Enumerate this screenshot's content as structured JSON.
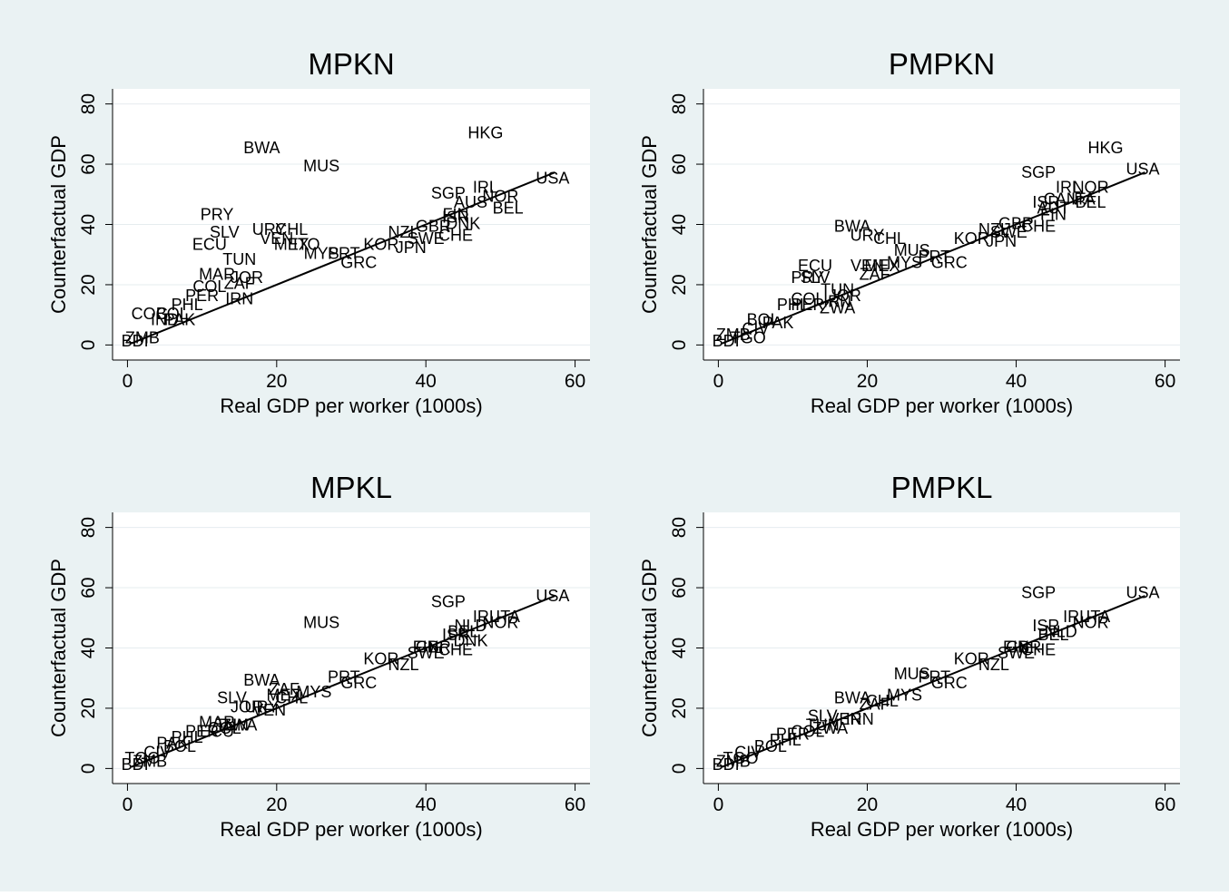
{
  "figure": {
    "background": "#eaf2f3",
    "plot_background": "#ffffff",
    "ink": "#000000"
  },
  "chart_data": [
    {
      "type": "scatter",
      "title": "MPKN",
      "xlabel": "Real GDP per worker (1000s)",
      "ylabel": "Counterfactual GDP",
      "xlim": [
        -2,
        62
      ],
      "ylim": [
        -5,
        85
      ],
      "xticks": [
        0,
        20,
        40,
        60
      ],
      "yticks": [
        0,
        20,
        40,
        60,
        80
      ],
      "grid": true,
      "fit_line": {
        "x": [
          0.5,
          57.3
        ],
        "y": [
          0.5,
          57.3
        ]
      },
      "points": [
        {
          "label": "HKG",
          "x": 48,
          "y": 70
        },
        {
          "label": "USA",
          "x": 57,
          "y": 55
        },
        {
          "label": "BWA",
          "x": 18,
          "y": 65
        },
        {
          "label": "MUS",
          "x": 26,
          "y": 59
        },
        {
          "label": "PRY",
          "x": 12,
          "y": 43
        },
        {
          "label": "SLV",
          "x": 13,
          "y": 37
        },
        {
          "label": "ECU",
          "x": 11,
          "y": 33
        },
        {
          "label": "URY",
          "x": 19,
          "y": 38
        },
        {
          "label": "CHL",
          "x": 22,
          "y": 38
        },
        {
          "label": "VEN",
          "x": 20,
          "y": 35
        },
        {
          "label": "MEX",
          "x": 22,
          "y": 33
        },
        {
          "label": "ITO",
          "x": 24,
          "y": 33
        },
        {
          "label": "MYS",
          "x": 26,
          "y": 30
        },
        {
          "label": "PRT",
          "x": 29,
          "y": 30
        },
        {
          "label": "GRC",
          "x": 31,
          "y": 27
        },
        {
          "label": "TUN",
          "x": 15,
          "y": 28
        },
        {
          "label": "MAR",
          "x": 12,
          "y": 23
        },
        {
          "label": "JOR",
          "x": 16,
          "y": 22
        },
        {
          "label": "COL",
          "x": 11,
          "y": 19
        },
        {
          "label": "ZAF",
          "x": 15,
          "y": 20
        },
        {
          "label": "PER",
          "x": 10,
          "y": 16
        },
        {
          "label": "IRN",
          "x": 15,
          "y": 15
        },
        {
          "label": "PHL",
          "x": 8,
          "y": 13
        },
        {
          "label": "COG",
          "x": 3,
          "y": 10
        },
        {
          "label": "BOL",
          "x": 6,
          "y": 10
        },
        {
          "label": "IND",
          "x": 5,
          "y": 8
        },
        {
          "label": "PAK",
          "x": 7,
          "y": 8
        },
        {
          "label": "ZMB",
          "x": 2,
          "y": 2
        },
        {
          "label": "BDI",
          "x": 1,
          "y": 1
        },
        {
          "label": "SGP",
          "x": 43,
          "y": 50
        },
        {
          "label": "IRL",
          "x": 48,
          "y": 52
        },
        {
          "label": "NOR",
          "x": 50,
          "y": 49
        },
        {
          "label": "BEL",
          "x": 51,
          "y": 45
        },
        {
          "label": "AUS",
          "x": 46,
          "y": 47
        },
        {
          "label": "ISR",
          "x": 44,
          "y": 42
        },
        {
          "label": "DNK",
          "x": 45,
          "y": 40
        },
        {
          "label": "FIN",
          "x": 44,
          "y": 43
        },
        {
          "label": "GBR",
          "x": 41,
          "y": 39
        },
        {
          "label": "NZL",
          "x": 37,
          "y": 37
        },
        {
          "label": "SWE",
          "x": 40,
          "y": 35
        },
        {
          "label": "CHE",
          "x": 44,
          "y": 36
        },
        {
          "label": "KOR",
          "x": 34,
          "y": 33
        },
        {
          "label": "JPN",
          "x": 38,
          "y": 32
        }
      ]
    },
    {
      "type": "scatter",
      "title": "PMPKN",
      "xlabel": "Real GDP per worker (1000s)",
      "ylabel": "Counterfactual GDP",
      "xlim": [
        -2,
        62
      ],
      "ylim": [
        -5,
        85
      ],
      "xticks": [
        0,
        20,
        40,
        60
      ],
      "yticks": [
        0,
        20,
        40,
        60,
        80
      ],
      "grid": true,
      "fit_line": {
        "x": [
          0.5,
          57.3
        ],
        "y": [
          0.5,
          57.3
        ]
      },
      "points": [
        {
          "label": "HKG",
          "x": 52,
          "y": 65
        },
        {
          "label": "USA",
          "x": 57,
          "y": 58
        },
        {
          "label": "SGP",
          "x": 43,
          "y": 57
        },
        {
          "label": "IRL",
          "x": 47,
          "y": 52
        },
        {
          "label": "NOR",
          "x": 50,
          "y": 52
        },
        {
          "label": "CAN",
          "x": 46,
          "y": 48
        },
        {
          "label": "ITA",
          "x": 49,
          "y": 48
        },
        {
          "label": "ISR",
          "x": 44,
          "y": 47
        },
        {
          "label": "BEL",
          "x": 50,
          "y": 47
        },
        {
          "label": "AUT",
          "x": 45,
          "y": 45
        },
        {
          "label": "FIN",
          "x": 45,
          "y": 43
        },
        {
          "label": "GBR",
          "x": 40,
          "y": 40
        },
        {
          "label": "NZL",
          "x": 37,
          "y": 38
        },
        {
          "label": "SWE",
          "x": 39,
          "y": 37
        },
        {
          "label": "CHE",
          "x": 43,
          "y": 39
        },
        {
          "label": "KOR",
          "x": 34,
          "y": 35
        },
        {
          "label": "JPN",
          "x": 38,
          "y": 34
        },
        {
          "label": "BWA",
          "x": 18,
          "y": 39
        },
        {
          "label": "URY",
          "x": 20,
          "y": 36
        },
        {
          "label": "CHL",
          "x": 23,
          "y": 35
        },
        {
          "label": "MUS",
          "x": 26,
          "y": 31
        },
        {
          "label": "PRT",
          "x": 29,
          "y": 29
        },
        {
          "label": "GRC",
          "x": 31,
          "y": 27
        },
        {
          "label": "ECU",
          "x": 13,
          "y": 26
        },
        {
          "label": "VEN",
          "x": 20,
          "y": 26
        },
        {
          "label": "MEX",
          "x": 22,
          "y": 26
        },
        {
          "label": "MYS",
          "x": 25,
          "y": 27
        },
        {
          "label": "PRY",
          "x": 12,
          "y": 22
        },
        {
          "label": "SLV",
          "x": 13,
          "y": 22
        },
        {
          "label": "ZAF",
          "x": 21,
          "y": 23
        },
        {
          "label": "TUN",
          "x": 16,
          "y": 18
        },
        {
          "label": "JOR",
          "x": 17,
          "y": 16
        },
        {
          "label": "COL",
          "x": 12,
          "y": 15
        },
        {
          "label": "IRN",
          "x": 16,
          "y": 14
        },
        {
          "label": "PHL",
          "x": 10,
          "y": 13
        },
        {
          "label": "PER",
          "x": 12,
          "y": 13
        },
        {
          "label": "ZWA",
          "x": 16,
          "y": 12
        },
        {
          "label": "BOL",
          "x": 6,
          "y": 8
        },
        {
          "label": "PAK",
          "x": 8,
          "y": 7
        },
        {
          "label": "CIV",
          "x": 5,
          "y": 5
        },
        {
          "label": "ZMB",
          "x": 2,
          "y": 3
        },
        {
          "label": "BDI",
          "x": 1,
          "y": 1
        },
        {
          "label": "TGO",
          "x": 4,
          "y": 2
        }
      ]
    },
    {
      "type": "scatter",
      "title": "MPKL",
      "xlabel": "Real GDP per worker (1000s)",
      "ylabel": "Counterfactual GDP",
      "xlim": [
        -2,
        62
      ],
      "ylim": [
        -5,
        85
      ],
      "xticks": [
        0,
        20,
        40,
        60
      ],
      "yticks": [
        0,
        20,
        40,
        60,
        80
      ],
      "grid": true,
      "fit_line": {
        "x": [
          0.5,
          57.3
        ],
        "y": [
          0.5,
          57.3
        ]
      },
      "points": [
        {
          "label": "USA",
          "x": 57,
          "y": 57
        },
        {
          "label": "SGP",
          "x": 43,
          "y": 55
        },
        {
          "label": "MUS",
          "x": 26,
          "y": 48
        },
        {
          "label": "IRL",
          "x": 48,
          "y": 50
        },
        {
          "label": "ITA",
          "x": 51,
          "y": 50
        },
        {
          "label": "NOR",
          "x": 50,
          "y": 48
        },
        {
          "label": "NLD",
          "x": 46,
          "y": 47
        },
        {
          "label": "BEL",
          "x": 45,
          "y": 45
        },
        {
          "label": "ISR",
          "x": 44,
          "y": 44
        },
        {
          "label": "DNK",
          "x": 46,
          "y": 42
        },
        {
          "label": "FIN",
          "x": 40,
          "y": 40
        },
        {
          "label": "GBR",
          "x": 41,
          "y": 40
        },
        {
          "label": "SWE",
          "x": 40,
          "y": 38
        },
        {
          "label": "CHE",
          "x": 44,
          "y": 39
        },
        {
          "label": "KOR",
          "x": 34,
          "y": 36
        },
        {
          "label": "NZL",
          "x": 37,
          "y": 34
        },
        {
          "label": "PRT",
          "x": 29,
          "y": 30
        },
        {
          "label": "GRC",
          "x": 31,
          "y": 28
        },
        {
          "label": "BWA",
          "x": 18,
          "y": 29
        },
        {
          "label": "ZAF",
          "x": 21,
          "y": 26
        },
        {
          "label": "MYS",
          "x": 25,
          "y": 25
        },
        {
          "label": "MEX",
          "x": 21,
          "y": 24
        },
        {
          "label": "CHL",
          "x": 22,
          "y": 23
        },
        {
          "label": "SLV",
          "x": 14,
          "y": 23
        },
        {
          "label": "JOR",
          "x": 16,
          "y": 20
        },
        {
          "label": "URY",
          "x": 18,
          "y": 20
        },
        {
          "label": "VEN",
          "x": 19,
          "y": 19
        },
        {
          "label": "MAR",
          "x": 12,
          "y": 15
        },
        {
          "label": "TUN",
          "x": 14,
          "y": 14
        },
        {
          "label": "ZWA",
          "x": 15,
          "y": 14
        },
        {
          "label": "PER",
          "x": 10,
          "y": 12
        },
        {
          "label": "ECU",
          "x": 12,
          "y": 12
        },
        {
          "label": "COL",
          "x": 13,
          "y": 13
        },
        {
          "label": "PHL",
          "x": 8,
          "y": 10
        },
        {
          "label": "BOL",
          "x": 7,
          "y": 7
        },
        {
          "label": "PAK",
          "x": 6,
          "y": 8
        },
        {
          "label": "CIV",
          "x": 4,
          "y": 5
        },
        {
          "label": "TGO",
          "x": 2,
          "y": 3
        },
        {
          "label": "ZMB",
          "x": 3,
          "y": 2
        },
        {
          "label": "BDI",
          "x": 1,
          "y": 1
        }
      ]
    },
    {
      "type": "scatter",
      "title": "PMPKL",
      "xlabel": "Real GDP per worker (1000s)",
      "ylabel": "Counterfactual GDP",
      "xlim": [
        -2,
        62
      ],
      "ylim": [
        -5,
        85
      ],
      "xticks": [
        0,
        20,
        40,
        60
      ],
      "yticks": [
        0,
        20,
        40,
        60,
        80
      ],
      "grid": true,
      "fit_line": {
        "x": [
          0.5,
          57.3
        ],
        "y": [
          0.5,
          57.3
        ]
      },
      "points": [
        {
          "label": "SGP",
          "x": 43,
          "y": 58
        },
        {
          "label": "USA",
          "x": 57,
          "y": 58
        },
        {
          "label": "IRL",
          "x": 48,
          "y": 50
        },
        {
          "label": "ITA",
          "x": 51,
          "y": 50
        },
        {
          "label": "NOR",
          "x": 50,
          "y": 48
        },
        {
          "label": "ISR",
          "x": 44,
          "y": 47
        },
        {
          "label": "NLD",
          "x": 46,
          "y": 45
        },
        {
          "label": "BEL",
          "x": 45,
          "y": 44
        },
        {
          "label": "FIN",
          "x": 40,
          "y": 40
        },
        {
          "label": "GBR",
          "x": 41,
          "y": 40
        },
        {
          "label": "SWE",
          "x": 40,
          "y": 38
        },
        {
          "label": "CHE",
          "x": 43,
          "y": 39
        },
        {
          "label": "KOR",
          "x": 34,
          "y": 36
        },
        {
          "label": "NZL",
          "x": 37,
          "y": 34
        },
        {
          "label": "MUS",
          "x": 26,
          "y": 31
        },
        {
          "label": "PRT",
          "x": 29,
          "y": 30
        },
        {
          "label": "GRC",
          "x": 31,
          "y": 28
        },
        {
          "label": "MYS",
          "x": 25,
          "y": 24
        },
        {
          "label": "BWA",
          "x": 18,
          "y": 23
        },
        {
          "label": "CHL",
          "x": 22,
          "y": 22
        },
        {
          "label": "ZAF",
          "x": 21,
          "y": 21
        },
        {
          "label": "SLV",
          "x": 14,
          "y": 17
        },
        {
          "label": "VEN",
          "x": 17,
          "y": 16
        },
        {
          "label": "IRN",
          "x": 19,
          "y": 16
        },
        {
          "label": "TUN",
          "x": 14,
          "y": 14
        },
        {
          "label": "ZWA",
          "x": 15,
          "y": 13
        },
        {
          "label": "COL",
          "x": 12,
          "y": 12
        },
        {
          "label": "PER",
          "x": 10,
          "y": 11
        },
        {
          "label": "PHL",
          "x": 9,
          "y": 9
        },
        {
          "label": "BOL",
          "x": 7,
          "y": 7
        },
        {
          "label": "CIV",
          "x": 4,
          "y": 5
        },
        {
          "label": "TGO",
          "x": 3,
          "y": 3
        },
        {
          "label": "ZMB",
          "x": 2,
          "y": 2
        },
        {
          "label": "BDI",
          "x": 1,
          "y": 1
        }
      ]
    }
  ]
}
